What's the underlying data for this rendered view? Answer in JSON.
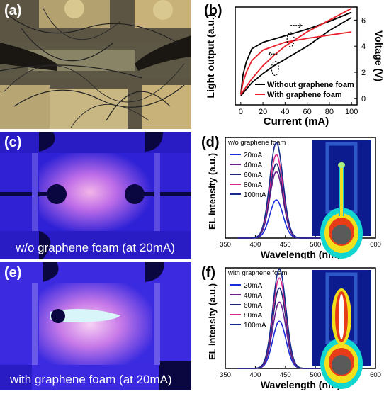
{
  "panels": {
    "a": {
      "label": "(a)"
    },
    "b": {
      "label": "(b)"
    },
    "c": {
      "label": "(c)",
      "caption": "w/o graphene foam (at 20mA)"
    },
    "d": {
      "label": "(d)"
    },
    "e": {
      "label": "(e)",
      "caption": "with graphene foam (at 20mA)"
    },
    "f": {
      "label": "(f)"
    }
  },
  "chart_data": [
    {
      "panel": "b",
      "type": "line",
      "xlabel": "Current (mA)",
      "ylabel": "Light output (a.u.)",
      "y2label": "Voltage (V)",
      "xlim": [
        -5,
        105
      ],
      "xticks": [
        0,
        20,
        40,
        60,
        80,
        100
      ],
      "y2lim": [
        -0.5,
        7
      ],
      "y2ticks": [
        0,
        2,
        4,
        6
      ],
      "legend": "bottom-right",
      "series": [
        {
          "name": "Without graphene foam",
          "color": "#000000",
          "axis": "y2",
          "x": [
            0,
            2,
            5,
            10,
            20,
            40,
            60,
            80,
            100
          ],
          "y": [
            0.3,
            1.8,
            2.8,
            3.8,
            4.3,
            4.8,
            5.3,
            5.9,
            6.6
          ]
        },
        {
          "name": "",
          "color": "#000000",
          "axis": "y2",
          "x": [
            0,
            10,
            20,
            30,
            40,
            60,
            80,
            100
          ],
          "y": [
            0.2,
            1.2,
            1.9,
            2.5,
            3.0,
            4.0,
            5.2,
            6.2
          ]
        },
        {
          "name": "With graphene foam",
          "color": "#e8202a",
          "axis": "y2",
          "x": [
            0,
            2,
            5,
            10,
            20,
            40,
            60,
            80,
            100
          ],
          "y": [
            0.3,
            1.2,
            2.0,
            2.9,
            3.7,
            4.3,
            4.6,
            4.85,
            5.1
          ]
        },
        {
          "name": "",
          "color": "#e8202a",
          "axis": "y2",
          "x": [
            0,
            10,
            20,
            30,
            40,
            60,
            80,
            100
          ],
          "y": [
            0.3,
            1.5,
            2.5,
            3.3,
            4.0,
            5.1,
            6.0,
            6.9
          ]
        }
      ]
    },
    {
      "panel": "d",
      "type": "line",
      "title": "w/o graphene foam",
      "xlabel": "Wavelength (nm)",
      "ylabel": "EL intensity (a.u.)",
      "xlim": [
        350,
        600
      ],
      "xticks": [
        350,
        400,
        450,
        500,
        550,
        600
      ],
      "peak_nm": 435,
      "series": [
        {
          "name": "20mA",
          "color": "#1a2bd8",
          "peak": 0.38
        },
        {
          "name": "40mA",
          "color": "#6a1f8a",
          "peak": 0.66
        },
        {
          "name": "60mA",
          "color": "#1c2473",
          "peak": 0.74
        },
        {
          "name": "80mA",
          "color": "#d6298a",
          "peak": 0.83
        },
        {
          "name": "100mA",
          "color": "#152b8c",
          "peak": 0.95
        }
      ]
    },
    {
      "panel": "f",
      "type": "line",
      "title": "with graphene foam",
      "xlabel": "Wavelength (nm)",
      "ylabel": "EL intensity (a.u.)",
      "xlim": [
        350,
        600
      ],
      "xticks": [
        350,
        400,
        450,
        500,
        550,
        600
      ],
      "peak_nm": 440,
      "series": [
        {
          "name": "20mA",
          "color": "#1a2bd8",
          "peak": 0.47
        },
        {
          "name": "40mA",
          "color": "#6a1f8a",
          "peak": 0.66
        },
        {
          "name": "60mA",
          "color": "#1c2473",
          "peak": 0.8
        },
        {
          "name": "80mA",
          "color": "#d6298a",
          "peak": 0.9
        },
        {
          "name": "100mA",
          "color": "#152b8c",
          "peak": 0.99
        }
      ]
    }
  ]
}
